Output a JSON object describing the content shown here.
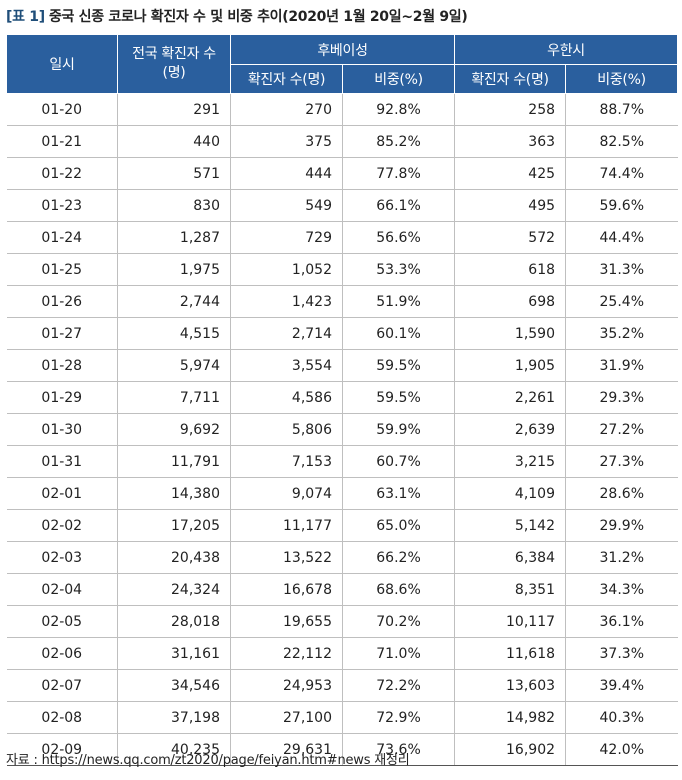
{
  "title": {
    "prefix": "[표 1]",
    "text": "중국 신종 코로나 확진자 수 및 비중 추이(2020년 1월 20일~2월 9일)"
  },
  "table": {
    "headers": {
      "date": "일시",
      "national": "전국 확진자 수\n(명)",
      "hubei": "후베이성",
      "wuhan": "우한시",
      "hubei_count": "확진자 수(명)",
      "hubei_share": "비중(%)",
      "wuhan_count": "확진자 수(명)",
      "wuhan_share": "비중(%)"
    },
    "rows": [
      [
        "01-20",
        "291",
        "270",
        "92.8%",
        "258",
        "88.7%"
      ],
      [
        "01-21",
        "440",
        "375",
        "85.2%",
        "363",
        "82.5%"
      ],
      [
        "01-22",
        "571",
        "444",
        "77.8%",
        "425",
        "74.4%"
      ],
      [
        "01-23",
        "830",
        "549",
        "66.1%",
        "495",
        "59.6%"
      ],
      [
        "01-24",
        "1,287",
        "729",
        "56.6%",
        "572",
        "44.4%"
      ],
      [
        "01-25",
        "1,975",
        "1,052",
        "53.3%",
        "618",
        "31.3%"
      ],
      [
        "01-26",
        "2,744",
        "1,423",
        "51.9%",
        "698",
        "25.4%"
      ],
      [
        "01-27",
        "4,515",
        "2,714",
        "60.1%",
        "1,590",
        "35.2%"
      ],
      [
        "01-28",
        "5,974",
        "3,554",
        "59.5%",
        "1,905",
        "31.9%"
      ],
      [
        "01-29",
        "7,711",
        "4,586",
        "59.5%",
        "2,261",
        "29.3%"
      ],
      [
        "01-30",
        "9,692",
        "5,806",
        "59.9%",
        "2,639",
        "27.2%"
      ],
      [
        "01-31",
        "11,791",
        "7,153",
        "60.7%",
        "3,215",
        "27.3%"
      ],
      [
        "02-01",
        "14,380",
        "9,074",
        "63.1%",
        "4,109",
        "28.6%"
      ],
      [
        "02-02",
        "17,205",
        "11,177",
        "65.0%",
        "5,142",
        "29.9%"
      ],
      [
        "02-03",
        "20,438",
        "13,522",
        "66.2%",
        "6,384",
        "31.2%"
      ],
      [
        "02-04",
        "24,324",
        "16,678",
        "68.6%",
        "8,351",
        "34.3%"
      ],
      [
        "02-05",
        "28,018",
        "19,655",
        "70.2%",
        "10,117",
        "36.1%"
      ],
      [
        "02-06",
        "31,161",
        "22,112",
        "71.0%",
        "11,618",
        "37.3%"
      ],
      [
        "02-07",
        "34,546",
        "24,953",
        "72.2%",
        "13,603",
        "39.4%"
      ],
      [
        "02-08",
        "37,198",
        "27,100",
        "72.9%",
        "14,982",
        "40.3%"
      ],
      [
        "02-09",
        "40,235",
        "29,631",
        "73.6%",
        "16,902",
        "42.0%"
      ]
    ]
  },
  "source": "자료 : https://news.qq.com/zt2020/page/feiyan.htm#news 재정리",
  "colors": {
    "header_bg": "#2a5f9e",
    "title_accent": "#1f4e79"
  }
}
